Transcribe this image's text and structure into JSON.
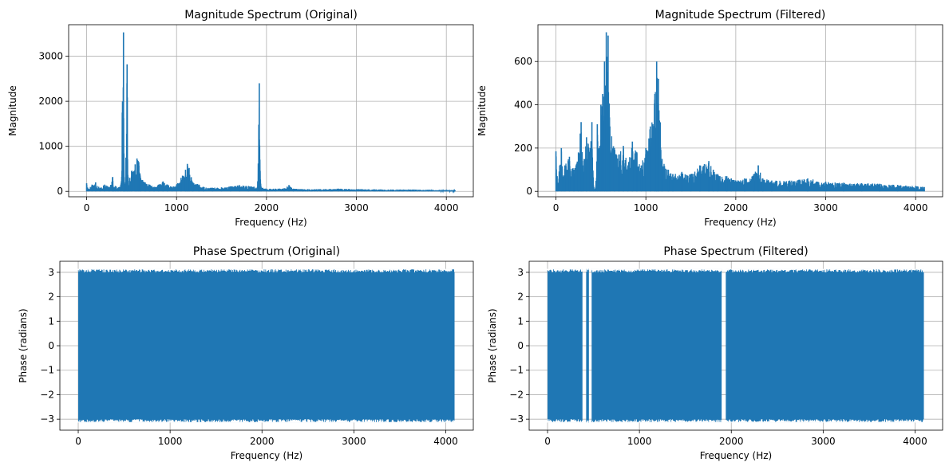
{
  "chart_data": [
    {
      "type": "line",
      "title": "Magnitude Spectrum (Original)",
      "xlabel": "Frequency (Hz)",
      "ylabel": "Magnitude",
      "xlim": [
        -200,
        4300
      ],
      "ylim": [
        -120,
        3700
      ],
      "xticks": [
        0,
        1000,
        2000,
        3000,
        4000
      ],
      "xtick_labels": [
        "0",
        "1000",
        "2000",
        "3000",
        "4000"
      ],
      "yticks": [
        0,
        1000,
        2000,
        3000
      ],
      "ytick_labels": [
        "0",
        "1000",
        "2000",
        "3000"
      ],
      "grid": true,
      "color": "#1f77b4",
      "series": [
        {
          "x": [
            0,
            20,
            60,
            100,
            150,
            200,
            250,
            290,
            300,
            320,
            350,
            380,
            410,
            420,
            430,
            450,
            465,
            480,
            500,
            540,
            560,
            580,
            600,
            650,
            700,
            750,
            800,
            850,
            900,
            950,
            1000,
            1050,
            1100,
            1120,
            1140,
            1180,
            1250,
            1300,
            1400,
            1500,
            1600,
            1700,
            1800,
            1900,
            1920,
            1940,
            2000,
            2100,
            2200,
            2250,
            2300,
            2400,
            2600,
            2800,
            3000,
            3200,
            3400,
            3600,
            3800,
            4000,
            4096
          ],
          "y": [
            180,
            60,
            150,
            200,
            80,
            150,
            100,
            320,
            80,
            120,
            80,
            150,
            3530,
            100,
            200,
            2820,
            120,
            300,
            450,
            600,
            730,
            650,
            300,
            200,
            150,
            100,
            150,
            220,
            150,
            100,
            150,
            300,
            480,
            610,
            520,
            200,
            150,
            100,
            80,
            90,
            110,
            140,
            120,
            100,
            2400,
            90,
            60,
            60,
            70,
            140,
            60,
            50,
            50,
            60,
            50,
            45,
            40,
            40,
            35,
            30,
            25
          ]
        }
      ]
    },
    {
      "type": "line",
      "title": "Magnitude Spectrum (Filtered)",
      "xlabel": "Frequency (Hz)",
      "ylabel": "Magnitude",
      "xlim": [
        -200,
        4300
      ],
      "ylim": [
        -25,
        770
      ],
      "xticks": [
        0,
        1000,
        2000,
        3000,
        4000
      ],
      "xtick_labels": [
        "0",
        "1000",
        "2000",
        "3000",
        "4000"
      ],
      "yticks": [
        0,
        200,
        400,
        600
      ],
      "ytick_labels": [
        "0",
        "200",
        "400",
        "600"
      ],
      "grid": true,
      "color": "#1f77b4",
      "series": [
        {
          "x": [
            0,
            20,
            60,
            80,
            100,
            150,
            200,
            250,
            280,
            300,
            340,
            380,
            400,
            420,
            440,
            460,
            480,
            500,
            520,
            540,
            560,
            580,
            600,
            650,
            700,
            750,
            800,
            850,
            900,
            950,
            1000,
            1050,
            1100,
            1120,
            1140,
            1180,
            1250,
            1300,
            1400,
            1500,
            1600,
            1700,
            1750,
            1800,
            1900,
            1950,
            2000,
            2100,
            2200,
            2250,
            2300,
            2400,
            2600,
            2800,
            3000,
            3200,
            3400,
            3600,
            3800,
            4000,
            4096
          ],
          "y": [
            185,
            40,
            200,
            60,
            120,
            160,
            100,
            180,
            320,
            120,
            250,
            200,
            320,
            20,
            15,
            310,
            200,
            400,
            450,
            600,
            735,
            720,
            300,
            200,
            170,
            210,
            120,
            230,
            180,
            120,
            200,
            300,
            450,
            600,
            520,
            150,
            100,
            80,
            90,
            80,
            120,
            140,
            100,
            80,
            70,
            60,
            50,
            60,
            80,
            120,
            60,
            50,
            50,
            60,
            45,
            40,
            38,
            35,
            30,
            25,
            20
          ]
        }
      ]
    },
    {
      "type": "area",
      "title": "Phase Spectrum (Original)",
      "xlabel": "Frequency (Hz)",
      "ylabel": "Phase (radians)",
      "xlim": [
        -200,
        4300
      ],
      "ylim": [
        -3.45,
        3.45
      ],
      "xticks": [
        0,
        1000,
        2000,
        3000,
        4000
      ],
      "xtick_labels": [
        "0",
        "1000",
        "2000",
        "3000",
        "4000"
      ],
      "yticks": [
        3,
        2,
        1,
        0,
        -1,
        -2,
        -3
      ],
      "ytick_labels": [
        "3",
        "2",
        "1",
        "0",
        "−1",
        "−2",
        "−3"
      ],
      "grid": true,
      "color": "#1f77b4",
      "band": {
        "x_start": 0,
        "x_end": 4096,
        "y_min": -3.14159,
        "y_max": 3.14159
      },
      "gaps": []
    },
    {
      "type": "area",
      "title": "Phase Spectrum (Filtered)",
      "xlabel": "Frequency (Hz)",
      "ylabel": "Phase (radians)",
      "xlim": [
        -200,
        4300
      ],
      "ylim": [
        -3.45,
        3.45
      ],
      "xticks": [
        0,
        1000,
        2000,
        3000,
        4000
      ],
      "xtick_labels": [
        "0",
        "1000",
        "2000",
        "3000",
        "4000"
      ],
      "yticks": [
        3,
        2,
        1,
        0,
        -1,
        -2,
        -3
      ],
      "ytick_labels": [
        "3",
        "2",
        "1",
        "0",
        "−1",
        "−2",
        "−3"
      ],
      "grid": true,
      "color": "#1f77b4",
      "band": {
        "x_start": 0,
        "x_end": 4096,
        "y_min": -3.14159,
        "y_max": 3.14159
      },
      "gaps": [
        [
          380,
          420
        ],
        [
          450,
          480
        ],
        [
          1895,
          1940
        ]
      ]
    }
  ]
}
